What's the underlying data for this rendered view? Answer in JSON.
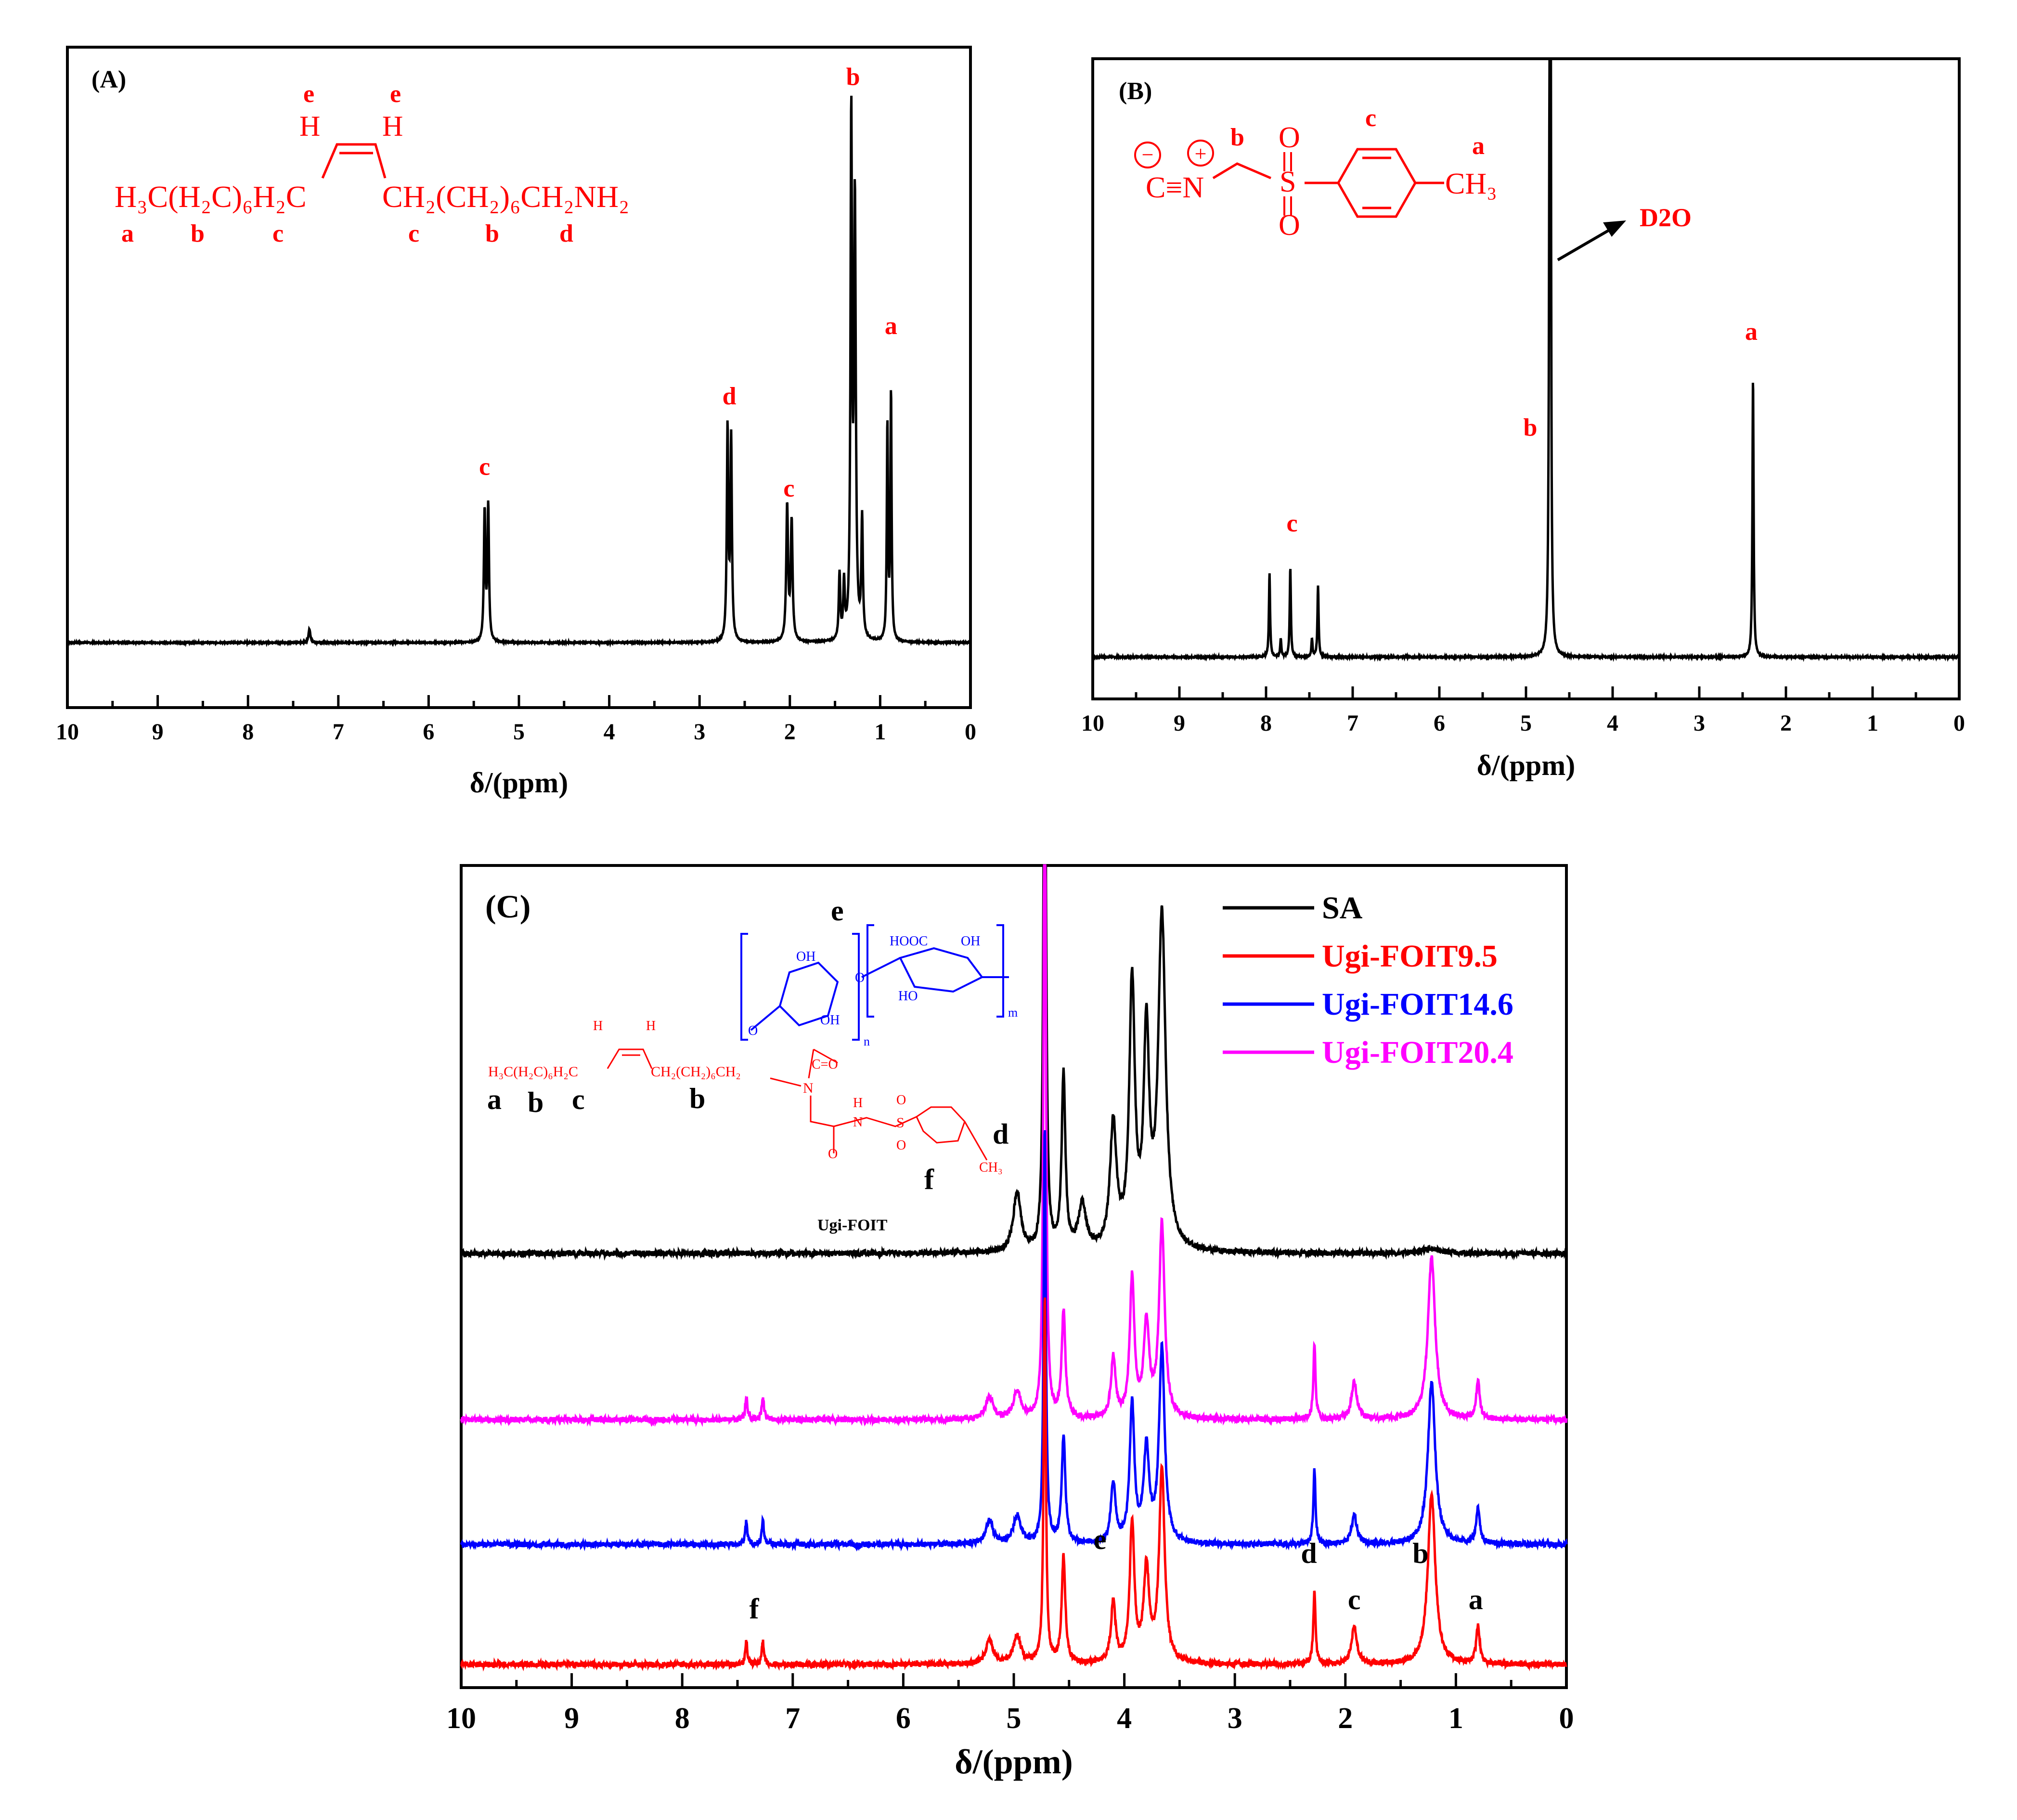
{
  "figure": {
    "panels": [
      "A",
      "B",
      "C"
    ]
  },
  "chart_data": [
    {
      "panel": "(A)",
      "type": "line",
      "xlabel": "δ/(ppm)",
      "xlim": [
        10,
        0
      ],
      "xticks": [
        "10",
        "9",
        "8",
        "7",
        "6",
        "5",
        "4",
        "3",
        "2",
        "1",
        "0"
      ],
      "line_color": "#000000",
      "baseline": 0,
      "ylim": [
        -0.12,
        1.1
      ],
      "peaks": [
        {
          "x": 7.32,
          "h": 0.025,
          "w": 0.012
        },
        {
          "x": 5.38,
          "h": 0.24,
          "w": 0.01
        },
        {
          "x": 5.34,
          "h": 0.25,
          "w": 0.01
        },
        {
          "x": 2.69,
          "h": 0.39,
          "w": 0.01
        },
        {
          "x": 2.65,
          "h": 0.37,
          "w": 0.01
        },
        {
          "x": 2.03,
          "h": 0.25,
          "w": 0.012
        },
        {
          "x": 1.98,
          "h": 0.22,
          "w": 0.012
        },
        {
          "x": 1.45,
          "h": 0.12,
          "w": 0.01
        },
        {
          "x": 1.4,
          "h": 0.1,
          "w": 0.01
        },
        {
          "x": 1.32,
          "h": 0.95,
          "w": 0.01
        },
        {
          "x": 1.28,
          "h": 0.8,
          "w": 0.012
        },
        {
          "x": 1.2,
          "h": 0.22,
          "w": 0.01
        },
        {
          "x": 0.92,
          "h": 0.4,
          "w": 0.008
        },
        {
          "x": 0.88,
          "h": 0.46,
          "w": 0.008
        }
      ],
      "peak_labels": [
        {
          "text": "c",
          "x": 5.38,
          "y": 0.31
        },
        {
          "text": "d",
          "x": 2.67,
          "y": 0.44
        },
        {
          "text": "c",
          "x": 2.01,
          "y": 0.27
        },
        {
          "text": "b",
          "x": 1.3,
          "y": 1.03
        },
        {
          "text": "a",
          "x": 0.88,
          "y": 0.57
        }
      ],
      "structure": {
        "formula_left": "H₃C(H₂C)₆H₂C",
        "formula_right": "CH₂(CH₂)₆CH₂NH₂",
        "h_atom": "H",
        "e_label": "e",
        "bottom_labels": [
          "a",
          "b",
          "c",
          "c",
          "b",
          "d"
        ]
      }
    },
    {
      "panel": "(B)",
      "type": "line",
      "xlabel": "δ/(ppm)",
      "xlim": [
        10,
        0
      ],
      "xticks": [
        "10",
        "9",
        "8",
        "7",
        "6",
        "5",
        "4",
        "3",
        "2",
        "1",
        "0"
      ],
      "line_color": "#000000",
      "baseline": 0,
      "ylim": [
        -0.07,
        1.0
      ],
      "peaks": [
        {
          "x": 7.96,
          "h": 0.14,
          "w": 0.008
        },
        {
          "x": 7.83,
          "h": 0.03,
          "w": 0.008
        },
        {
          "x": 7.72,
          "h": 0.15,
          "w": 0.008
        },
        {
          "x": 7.47,
          "h": 0.03,
          "w": 0.008
        },
        {
          "x": 7.4,
          "h": 0.12,
          "w": 0.008
        },
        {
          "x": 4.73,
          "h": 0.33,
          "w": 0.01
        },
        {
          "x": 4.72,
          "h": 5.0,
          "w": 0.004
        },
        {
          "x": 2.38,
          "h": 0.47,
          "w": 0.008
        }
      ],
      "peak_labels": [
        {
          "text": "c",
          "x": 7.7,
          "y": 0.21
        },
        {
          "text": "b",
          "x": 4.95,
          "y": 0.37
        },
        {
          "text": "a",
          "x": 2.4,
          "y": 0.53
        }
      ],
      "annotation": {
        "text": "D2O"
      },
      "structure": {
        "isocyanide": "C≡N",
        "minus": "−",
        "plus": "+",
        "sulfur": "S",
        "oxygen": "O",
        "methyl": "CH₃",
        "label_b": "b",
        "label_c": "c",
        "label_a": "a"
      }
    },
    {
      "panel": "(C)",
      "type": "line",
      "xlabel": "δ/(ppm)",
      "xlim": [
        10,
        0
      ],
      "xticks": [
        "10",
        "9",
        "8",
        "7",
        "6",
        "5",
        "4",
        "3",
        "2",
        "1",
        "0"
      ],
      "legend": {
        "placement": "top-right"
      },
      "series": [
        {
          "name": "SA",
          "color": "#000000",
          "offset": 0.94,
          "peaks": [
            {
              "x": 4.97,
              "h": 0.13,
              "w": 0.04
            },
            {
              "x": 4.72,
              "h": 1.6,
              "w": 0.012
            },
            {
              "x": 4.55,
              "h": 0.38,
              "w": 0.02
            },
            {
              "x": 4.38,
              "h": 0.1,
              "w": 0.04
            },
            {
              "x": 4.1,
              "h": 0.27,
              "w": 0.035
            },
            {
              "x": 3.93,
              "h": 0.57,
              "w": 0.03
            },
            {
              "x": 3.8,
              "h": 0.45,
              "w": 0.03
            },
            {
              "x": 3.66,
              "h": 0.72,
              "w": 0.04
            },
            {
              "x": 1.22,
              "h": 0.01,
              "w": 0.1
            }
          ]
        },
        {
          "name": "Ugi-FOIT20.4",
          "color": "#ff00ff",
          "offset": 0.58,
          "peaks": [
            {
              "x": 7.42,
              "h": 0.05,
              "w": 0.012
            },
            {
              "x": 7.27,
              "h": 0.05,
              "w": 0.012
            },
            {
              "x": 5.22,
              "h": 0.05,
              "w": 0.04
            },
            {
              "x": 4.97,
              "h": 0.06,
              "w": 0.04
            },
            {
              "x": 4.72,
              "h": 1.6,
              "w": 0.012
            },
            {
              "x": 4.55,
              "h": 0.23,
              "w": 0.02
            },
            {
              "x": 4.1,
              "h": 0.13,
              "w": 0.025
            },
            {
              "x": 3.93,
              "h": 0.3,
              "w": 0.025
            },
            {
              "x": 3.8,
              "h": 0.2,
              "w": 0.03
            },
            {
              "x": 3.66,
              "h": 0.42,
              "w": 0.03
            },
            {
              "x": 2.28,
              "h": 0.16,
              "w": 0.012
            },
            {
              "x": 1.92,
              "h": 0.08,
              "w": 0.03
            },
            {
              "x": 1.22,
              "h": 0.35,
              "w": 0.04
            },
            {
              "x": 0.8,
              "h": 0.08,
              "w": 0.02
            }
          ]
        },
        {
          "name": "Ugi-FOIT14.6",
          "color": "#0000ff",
          "offset": 0.31,
          "peaks": [
            {
              "x": 7.42,
              "h": 0.05,
              "w": 0.012
            },
            {
              "x": 7.27,
              "h": 0.05,
              "w": 0.012
            },
            {
              "x": 5.22,
              "h": 0.05,
              "w": 0.04
            },
            {
              "x": 4.97,
              "h": 0.06,
              "w": 0.04
            },
            {
              "x": 4.72,
              "h": 0.9,
              "w": 0.012
            },
            {
              "x": 4.55,
              "h": 0.23,
              "w": 0.02
            },
            {
              "x": 4.1,
              "h": 0.13,
              "w": 0.025
            },
            {
              "x": 3.93,
              "h": 0.3,
              "w": 0.025
            },
            {
              "x": 3.8,
              "h": 0.2,
              "w": 0.03
            },
            {
              "x": 3.66,
              "h": 0.42,
              "w": 0.03
            },
            {
              "x": 2.28,
              "h": 0.16,
              "w": 0.012
            },
            {
              "x": 1.92,
              "h": 0.06,
              "w": 0.03
            },
            {
              "x": 1.22,
              "h": 0.35,
              "w": 0.04
            },
            {
              "x": 0.8,
              "h": 0.08,
              "w": 0.02
            }
          ]
        },
        {
          "name": "Ugi-FOIT9.5",
          "color": "#ff0000",
          "offset": 0.05,
          "peaks": [
            {
              "x": 7.42,
              "h": 0.05,
              "w": 0.012
            },
            {
              "x": 7.27,
              "h": 0.05,
              "w": 0.012
            },
            {
              "x": 5.22,
              "h": 0.05,
              "w": 0.04
            },
            {
              "x": 4.97,
              "h": 0.06,
              "w": 0.04
            },
            {
              "x": 4.72,
              "h": 0.8,
              "w": 0.012
            },
            {
              "x": 4.55,
              "h": 0.23,
              "w": 0.02
            },
            {
              "x": 4.1,
              "h": 0.13,
              "w": 0.025
            },
            {
              "x": 3.93,
              "h": 0.3,
              "w": 0.025
            },
            {
              "x": 3.8,
              "h": 0.2,
              "w": 0.03
            },
            {
              "x": 3.66,
              "h": 0.42,
              "w": 0.03
            },
            {
              "x": 2.28,
              "h": 0.16,
              "w": 0.012
            },
            {
              "x": 1.92,
              "h": 0.08,
              "w": 0.03
            },
            {
              "x": 1.22,
              "h": 0.37,
              "w": 0.04
            },
            {
              "x": 0.8,
              "h": 0.08,
              "w": 0.02
            }
          ]
        }
      ],
      "peak_labels": [
        {
          "text": "f",
          "x": 7.35,
          "y": 0.15
        },
        {
          "text": "e",
          "x": 4.22,
          "y": 0.3
        },
        {
          "text": "d",
          "x": 2.33,
          "y": 0.27
        },
        {
          "text": "c",
          "x": 1.92,
          "y": 0.17
        },
        {
          "text": "b",
          "x": 1.32,
          "y": 0.27
        },
        {
          "text": "a",
          "x": 0.82,
          "y": 0.17
        }
      ],
      "structure": {
        "chain": "H₃C(H₂C)₆H₂C",
        "chain_right": "CH₂(CH₂)₆CH₂",
        "name": "Ugi-FOIT",
        "cooh": "HOOC",
        "oh": "OH",
        "ho": "HO",
        "o": "O",
        "n": "N",
        "nh": "H",
        "c_eq_o": "C=O",
        "ch3": "CH₃",
        "s": "S",
        "sub_n": "n",
        "sub_m": "m",
        "h_atom": "H",
        "labels": {
          "a": "a",
          "b": "b",
          "c": "c",
          "d": "d",
          "e": "e",
          "f": "f"
        }
      }
    }
  ]
}
